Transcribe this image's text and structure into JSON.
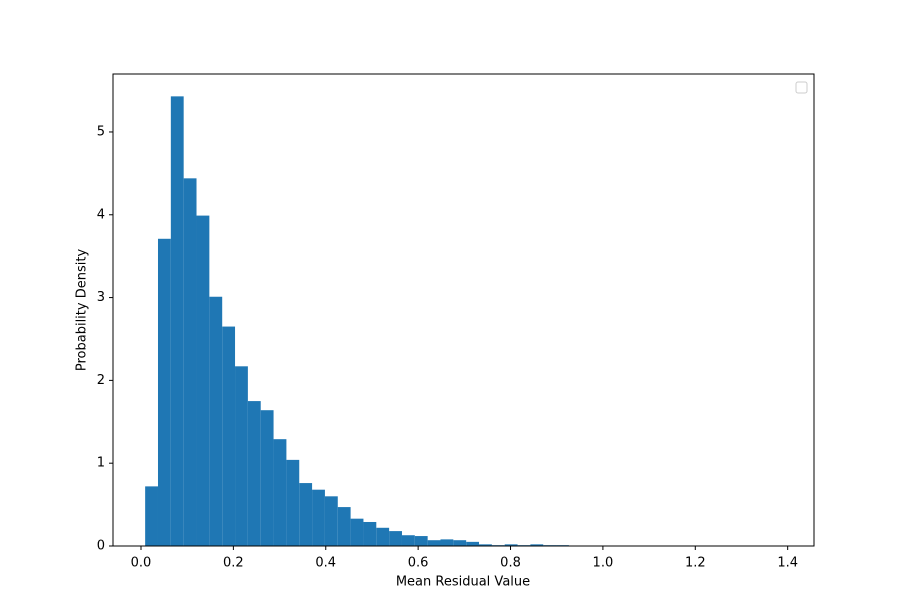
{
  "chart_data": {
    "type": "histogram",
    "x_label": "Mean Residual Value",
    "y_label": "Probability Density",
    "color": "#1f77b4",
    "bins": [
      0.009,
      0.0368,
      0.0646,
      0.0924,
      0.1202,
      0.148,
      0.1758,
      0.2036,
      0.2314,
      0.2592,
      0.287,
      0.3148,
      0.3426,
      0.3704,
      0.3982,
      0.426,
      0.4538,
      0.4816,
      0.5094,
      0.5372,
      0.565,
      0.5928,
      0.6206,
      0.6484,
      0.6762,
      0.704,
      0.7318,
      0.7596,
      0.7874,
      0.8152,
      0.843,
      0.8708,
      0.8986,
      0.9264,
      0.9542,
      0.982,
      1.0098,
      1.0376,
      1.0654,
      1.0932,
      1.121,
      1.1488,
      1.1766,
      1.2044,
      1.2322,
      1.26,
      1.2878,
      1.3156,
      1.3434,
      1.3712,
      1.399
    ],
    "values": [
      0.72,
      3.71,
      5.43,
      4.44,
      3.99,
      3.01,
      2.65,
      2.17,
      1.75,
      1.64,
      1.29,
      1.04,
      0.76,
      0.68,
      0.6,
      0.47,
      0.33,
      0.29,
      0.22,
      0.18,
      0.13,
      0.12,
      0.07,
      0.08,
      0.07,
      0.05,
      0.02,
      0.01,
      0.02,
      0.01,
      0.02,
      0.01,
      0.01,
      0.003,
      0.003,
      0.002,
      0,
      0.002,
      0,
      0,
      0,
      0.002,
      0,
      0,
      0,
      0,
      0,
      0,
      0,
      0.002
    ],
    "xlim": [
      -0.0606,
      1.457
    ],
    "ylim": [
      0,
      5.7
    ],
    "xticks": [
      {
        "value": 0,
        "label": "0.0"
      },
      {
        "value": 0.2,
        "label": "0.2"
      },
      {
        "value": 0.4,
        "label": "0.4"
      },
      {
        "value": 0.6,
        "label": "0.6"
      },
      {
        "value": 0.8,
        "label": "0.8"
      },
      {
        "value": 1,
        "label": "1.0"
      },
      {
        "value": 1.2,
        "label": "1.2"
      },
      {
        "value": 1.4,
        "label": "1.4"
      }
    ],
    "yticks": [
      0,
      1,
      2,
      3,
      4,
      5
    ],
    "grid": false,
    "legend": "upper right"
  }
}
